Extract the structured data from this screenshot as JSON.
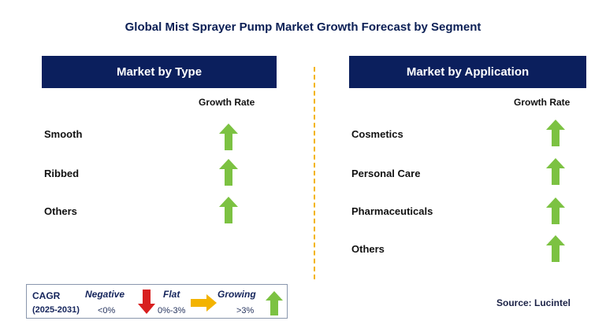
{
  "title": "Global Mist Sprayer Pump Market Growth Forecast by Segment",
  "colors": {
    "header_bg": "#0b1f5d",
    "growing_arrow": "#7cc242",
    "negative_arrow": "#d81f1f",
    "flat_arrow": "#f3b300",
    "divider": "#f3b300"
  },
  "left_panel": {
    "header": "Market by Type",
    "column_label": "Growth Rate",
    "rows": [
      {
        "label": "Smooth",
        "trend": "growing",
        "icon": "up-arrow-icon"
      },
      {
        "label": "Ribbed",
        "trend": "growing",
        "icon": "up-arrow-icon"
      },
      {
        "label": "Others",
        "trend": "growing",
        "icon": "up-arrow-icon"
      }
    ]
  },
  "right_panel": {
    "header": "Market by Application",
    "column_label": "Growth Rate",
    "rows": [
      {
        "label": "Cosmetics",
        "trend": "growing",
        "icon": "up-arrow-icon"
      },
      {
        "label": "Personal Care",
        "trend": "growing",
        "icon": "up-arrow-icon"
      },
      {
        "label": "Pharmaceuticals",
        "trend": "growing",
        "icon": "up-arrow-icon"
      },
      {
        "label": "Others",
        "trend": "growing",
        "icon": "up-arrow-icon"
      }
    ]
  },
  "legend": {
    "title": "CAGR",
    "period": "(2025-2031)",
    "negative": {
      "label": "Negative",
      "value": "<0%",
      "icon": "down-arrow-icon"
    },
    "flat": {
      "label": "Flat",
      "value": "0%-3%",
      "icon": "right-arrow-icon"
    },
    "growing": {
      "label": "Growing",
      "value": ">3%",
      "icon": "up-arrow-icon"
    }
  },
  "source": "Source: Lucintel"
}
